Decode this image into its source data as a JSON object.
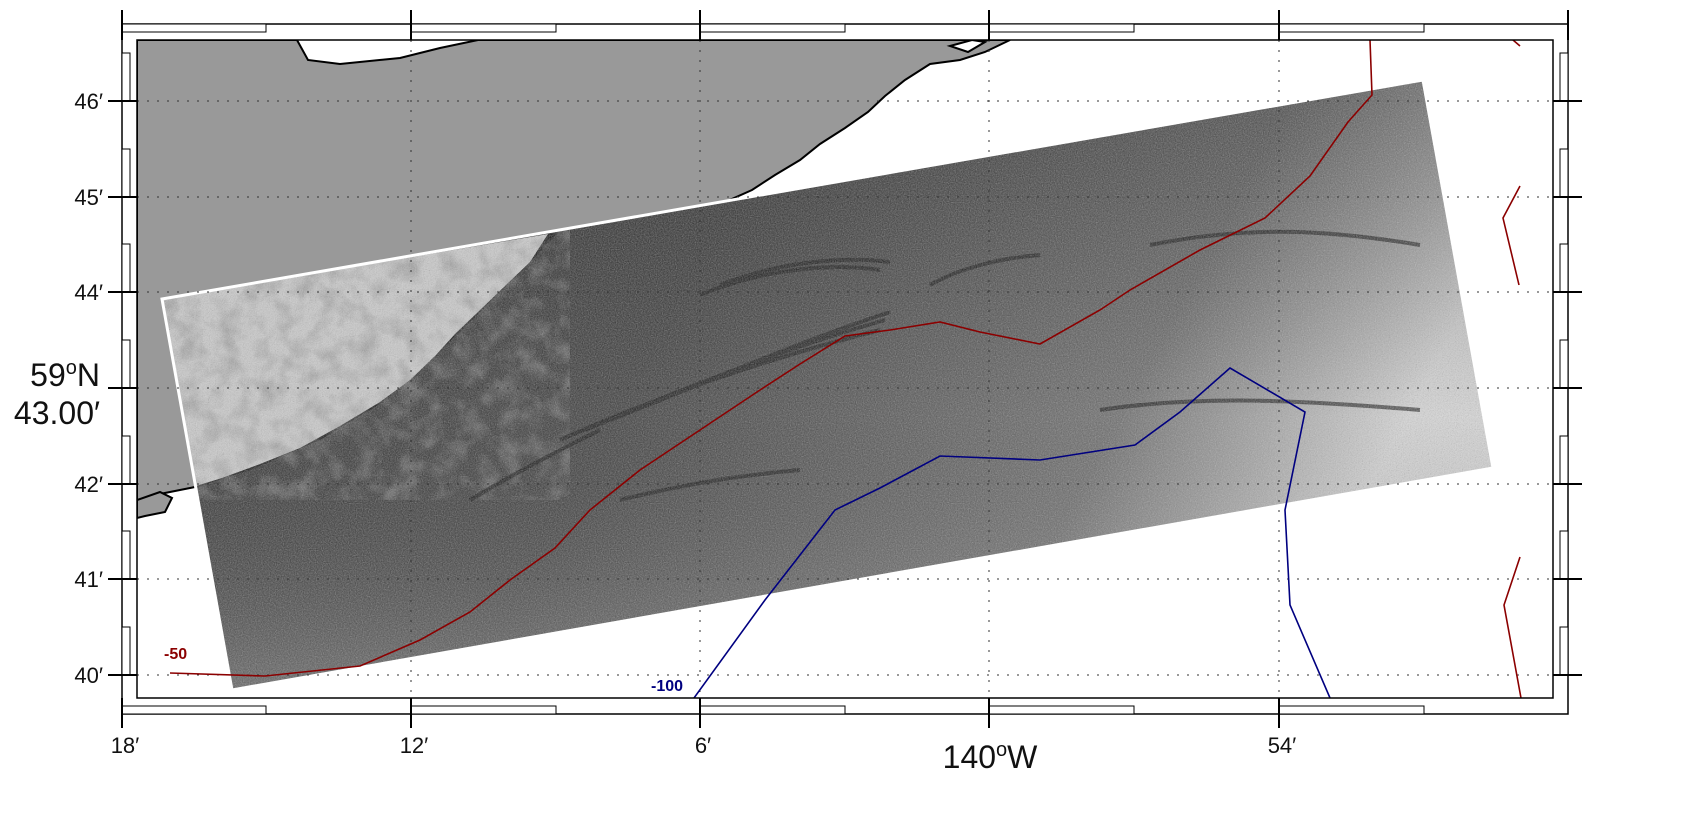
{
  "map": {
    "latitude_ticks": [
      "46′",
      "45′",
      "44′",
      "42′",
      "41′",
      "40′"
    ],
    "latitude_center_degree": "59",
    "latitude_center_hemisphere": "N",
    "latitude_center_minutes": "43.00′",
    "longitude_ticks": [
      "18′",
      "12′",
      "6′",
      "54′"
    ],
    "longitude_center_degree": "140",
    "longitude_center_hemisphere": "W",
    "degree_symbol": "o",
    "contours": [
      {
        "label": "-50",
        "color": "#8b0000"
      },
      {
        "label": "-100",
        "color": "#000080"
      }
    ],
    "colors": {
      "land": "#999999",
      "sonar_dark": "#111111",
      "sonar_light": "#e8e8e8",
      "frame": "#000000"
    }
  }
}
